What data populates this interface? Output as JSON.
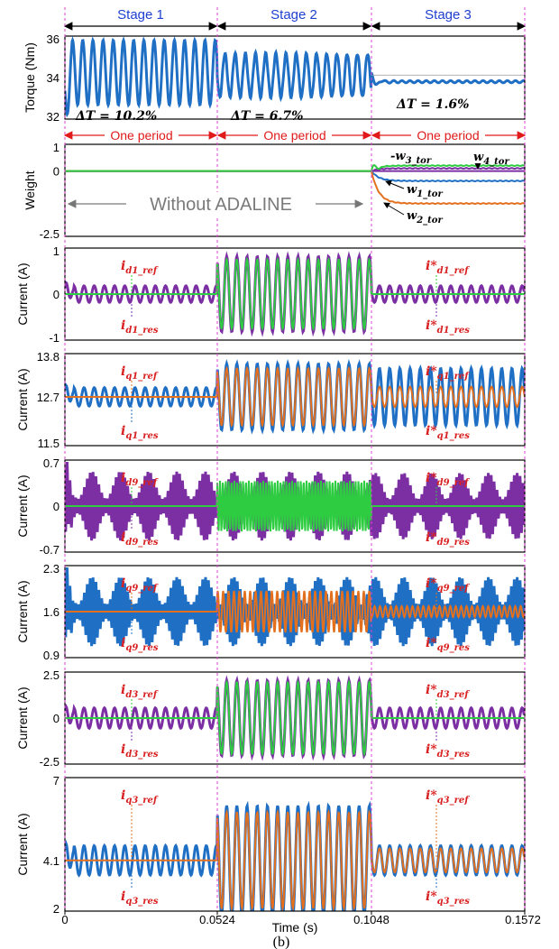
{
  "chart_data": {
    "type": "line",
    "stages": [
      "Stage 1",
      "Stage 2",
      "Stage 3"
    ],
    "period_label": "One period",
    "stage_boundaries": [
      0.0524,
      0.1048
    ],
    "xlabel": "Time (s)",
    "x_ticks": [
      "0",
      "0.0524",
      "0.1048",
      "0.1572"
    ],
    "xlim": [
      0,
      0.1572
    ],
    "caption": "(b)",
    "colors": {
      "blue": "#1f6fc4",
      "purple": "#7b2fa3",
      "green": "#2ecc40",
      "orange": "#e2701f",
      "red": "#e01a1a",
      "stageText": "#1f3fcf"
    },
    "panels": [
      {
        "id": "torque",
        "ylabel": "Torque (Nm)",
        "yticks": [
          "36",
          "34",
          "32"
        ],
        "ylim": [
          31,
          36.5
        ],
        "delta_t": [
          "ΔT = 10.2%",
          "ΔT = 6.7%",
          "ΔT = 1.6%"
        ]
      },
      {
        "id": "weight",
        "ylabel": "Weight",
        "yticks": [
          "1",
          "0",
          "-2.5"
        ],
        "ylim": [
          -2.5,
          1
        ],
        "no_adaline": "Without ADALINE",
        "weights": [
          "w3_tor",
          "w4_tor",
          "w1_tor",
          "w2_tor"
        ],
        "weight_labels": {
          "w3": "w",
          "w3s": "3_tor",
          "w4": "w",
          "w4s": "4_tor",
          "w1": "w",
          "w1s": "1_tor",
          "w2": "w",
          "w2s": "2_tor"
        }
      },
      {
        "id": "id1",
        "ylabel": "Current (A)",
        "yticks": [
          "1",
          "0",
          "-1"
        ],
        "ylim": [
          -1,
          1
        ],
        "ref": "i",
        "ref_sub": "d1_ref",
        "res": "i",
        "res_sub": "d1_res",
        "ref_star": "i*",
        "res_star": "i*"
      },
      {
        "id": "iq1",
        "ylabel": "Current (A)",
        "yticks": [
          "13.8",
          "12.7",
          "11.5"
        ],
        "ylim": [
          11.5,
          13.8
        ],
        "ref": "i",
        "ref_sub": "q1_ref",
        "res": "i",
        "res_sub": "q1_res",
        "ref_star": "i*",
        "res_star": "i*"
      },
      {
        "id": "id9",
        "ylabel": "Current (A)",
        "yticks": [
          "0.7",
          "0",
          "-0.7"
        ],
        "ylim": [
          -0.7,
          0.7
        ],
        "ref": "i",
        "ref_sub": "d9_ref",
        "res": "i",
        "res_sub": "d9_res",
        "ref_star": "i*",
        "res_star": "i*"
      },
      {
        "id": "iq9",
        "ylabel": "Current (A)",
        "yticks": [
          "2.3",
          "1.6",
          "0.9"
        ],
        "ylim": [
          0.9,
          2.3
        ],
        "ref": "i",
        "ref_sub": "q9_ref",
        "res": "i",
        "res_sub": "q9_res",
        "ref_star": "i*",
        "res_star": "i*"
      },
      {
        "id": "id3",
        "ylabel": "Current (A)",
        "yticks": [
          "2.5",
          "0",
          "-2.5"
        ],
        "ylim": [
          -2.5,
          2.5
        ],
        "ref": "i",
        "ref_sub": "d3_ref",
        "res": "i",
        "res_sub": "d3_res",
        "ref_star": "i*",
        "res_star": "i*"
      },
      {
        "id": "iq3",
        "ylabel": "Current (A)",
        "yticks": [
          "7",
          "4.1",
          "2"
        ],
        "ylim": [
          2,
          7
        ],
        "ref": "i",
        "ref_sub": "q3_ref",
        "res": "i",
        "res_sub": "q3_res",
        "ref_star": "i*",
        "res_star": "i*"
      }
    ]
  }
}
